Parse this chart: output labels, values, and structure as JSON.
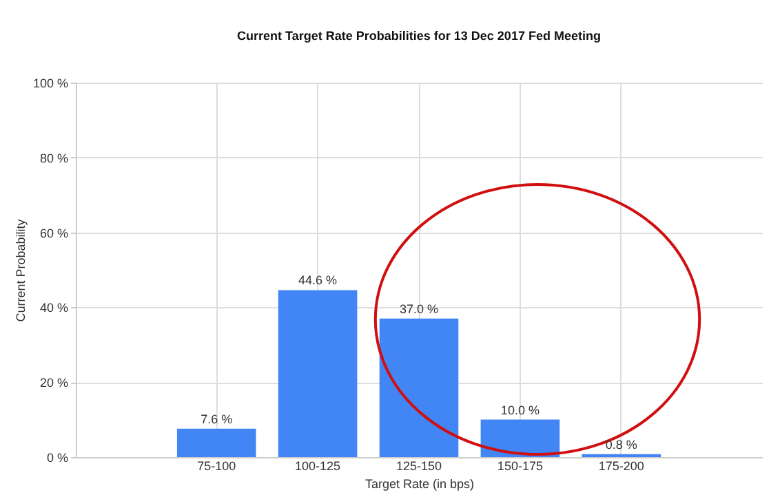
{
  "chart_data": {
    "type": "bar",
    "title": "Current Target Rate Probabilities for 13 Dec 2017 Fed Meeting",
    "xlabel": "Target Rate (in bps)",
    "ylabel": "Current Probability",
    "categories": [
      "75-100",
      "100-125",
      "125-150",
      "150-175",
      "175-200"
    ],
    "values": [
      7.6,
      44.6,
      37.0,
      10.0,
      0.8
    ],
    "value_labels": [
      "7.6 %",
      "44.6 %",
      "37.0 %",
      "10.0 %",
      "0.8 %"
    ],
    "color": "#4285f4",
    "ylim": [
      0,
      100
    ],
    "yticks": [
      {
        "value": 0,
        "label": "0 %"
      },
      {
        "value": 20,
        "label": "20 %"
      },
      {
        "value": 40,
        "label": "40 %"
      },
      {
        "value": 60,
        "label": "60 %"
      },
      {
        "value": 80,
        "label": "80 %"
      },
      {
        "value": 100,
        "label": "100 %"
      }
    ],
    "grid": true
  }
}
